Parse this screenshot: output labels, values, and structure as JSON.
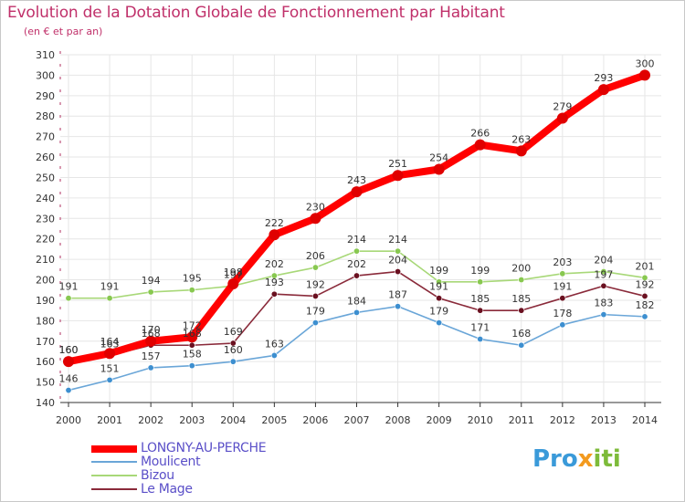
{
  "title": "Evolution de la Dotation Globale de Fonctionnement par Habitant",
  "subtitle": "(en € et par an)",
  "brand": {
    "part1": "Pro",
    "part2": "x",
    "part3": "iti"
  },
  "colors": {
    "title": "#c0306a",
    "axis": "#b03060",
    "grid": "#e6e6e6"
  },
  "chart_data": {
    "type": "line",
    "title": "Evolution de la Dotation Globale de Fonctionnement par Habitant",
    "subtitle": "(en € et par an)",
    "xlabel": "",
    "ylabel": "",
    "ylim": [
      140,
      310
    ],
    "yticks": [
      140,
      150,
      160,
      170,
      180,
      190,
      200,
      210,
      220,
      230,
      240,
      250,
      260,
      270,
      280,
      290,
      300,
      310
    ],
    "grid": true,
    "legend_position": "bottom-left",
    "categories": [
      "2000",
      "2001",
      "2002",
      "2003",
      "2004",
      "2005",
      "2006",
      "2007",
      "2008",
      "2009",
      "2010",
      "2011",
      "2012",
      "2013",
      "2014"
    ],
    "series": [
      {
        "name": "LONGNY-AU-PERCHE",
        "color": "#ff0000",
        "marker": "#e00000",
        "width": "thick",
        "values": [
          160,
          164,
          170,
          172,
          198,
          222,
          230,
          243,
          251,
          254,
          266,
          263,
          279,
          293,
          300
        ]
      },
      {
        "name": "Moulicent",
        "color": "#6aa6d8",
        "marker": "#3d8fd0",
        "width": "thin",
        "values": [
          146,
          151,
          157,
          158,
          160,
          163,
          179,
          184,
          187,
          179,
          171,
          168,
          178,
          183,
          182
        ]
      },
      {
        "name": "Bizou",
        "color": "#a8d878",
        "marker": "#88c850",
        "width": "thin",
        "values": [
          191,
          191,
          194,
          195,
          197,
          202,
          206,
          214,
          214,
          199,
          199,
          200,
          203,
          204,
          201
        ]
      },
      {
        "name": "Le Mage",
        "color": "#8a2a3a",
        "marker": "#6a1020",
        "width": "thin",
        "values": [
          160,
          163,
          168,
          168,
          169,
          193,
          192,
          202,
          204,
          191,
          185,
          185,
          191,
          197,
          192
        ]
      }
    ]
  }
}
